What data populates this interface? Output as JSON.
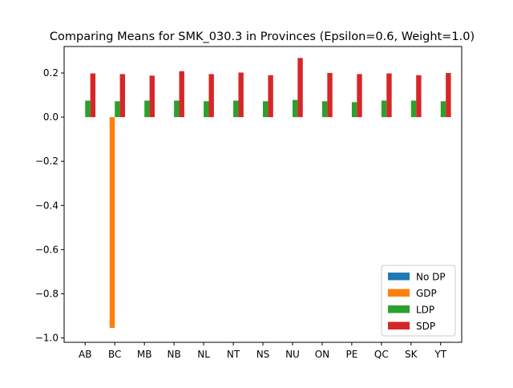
{
  "chart_data": {
    "type": "bar",
    "title": "Comparing Means for SMK_030.3 in Provinces (Epsilon=0.6, Weight=1.0)",
    "xlabel": "",
    "ylabel": "",
    "ylim": [
      -1.02,
      0.32
    ],
    "yticks": [
      0.2,
      0.0,
      -0.2,
      -0.4,
      -0.6,
      -0.8,
      -1.0
    ],
    "ytick_labels": [
      "0.2",
      "0.0",
      "−0.2",
      "−0.4",
      "−0.6",
      "−0.8",
      "−1.0"
    ],
    "categories": [
      "AB",
      "BC",
      "MB",
      "NB",
      "NL",
      "NT",
      "NS",
      "NU",
      "ON",
      "PE",
      "QC",
      "SK",
      "YT"
    ],
    "grid": false,
    "legend_position": "bottom-right",
    "series": [
      {
        "name": "No DP",
        "color": "#1f77b4",
        "values": [
          0,
          0,
          0,
          0,
          0,
          0,
          0,
          0,
          0,
          0,
          0,
          0,
          0
        ]
      },
      {
        "name": "GDP",
        "color": "#ff7f0e",
        "values": [
          0,
          -0.955,
          0,
          0,
          0,
          0,
          0,
          0,
          0,
          0,
          0,
          0,
          0
        ]
      },
      {
        "name": "LDP",
        "color": "#2ca02c",
        "values": [
          0.075,
          0.072,
          0.075,
          0.075,
          0.072,
          0.075,
          0.072,
          0.078,
          0.072,
          0.068,
          0.075,
          0.075,
          0.072
        ]
      },
      {
        "name": "SDP",
        "color": "#d62728",
        "values": [
          0.198,
          0.195,
          0.188,
          0.208,
          0.195,
          0.202,
          0.19,
          0.268,
          0.2,
          0.195,
          0.198,
          0.19,
          0.2
        ]
      }
    ]
  }
}
